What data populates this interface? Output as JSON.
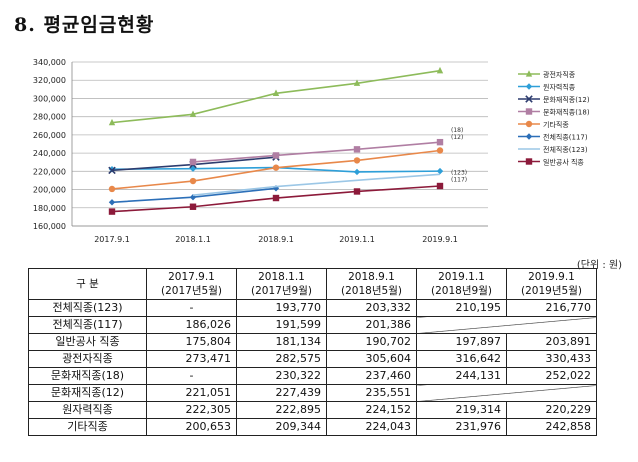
{
  "heading": "8. 평균임금현황",
  "unit_note": "(단위 : 원)",
  "chart_data": {
    "type": "line",
    "categories": [
      "2017.9.1",
      "2018.1.1",
      "2018.9.1",
      "2019.1.1",
      "2019.9.1"
    ],
    "ylim": [
      160000,
      340000
    ],
    "yticks": [
      "160,000",
      "180,000",
      "200,000",
      "220,000",
      "240,000",
      "260,000",
      "280,000",
      "300,000",
      "320,000",
      "340,000"
    ],
    "series": [
      {
        "name": "광전자직종",
        "color": "#8dbb5a",
        "marker": "triangle",
        "values": [
          273471,
          282575,
          305604,
          316642,
          330433
        ]
      },
      {
        "name": "원자력직종",
        "color": "#2e9fd8",
        "marker": "diamond",
        "values": [
          222305,
          222895,
          224152,
          219314,
          220229
        ]
      },
      {
        "name": "문화재직종(12)",
        "color": "#2d3c6e",
        "marker": "x",
        "values": [
          221051,
          227439,
          235551,
          null,
          null
        ]
      },
      {
        "name": "문화재직종(18)",
        "color": "#b07ea3",
        "marker": "square",
        "values": [
          null,
          230322,
          237460,
          244131,
          252022
        ]
      },
      {
        "name": "기타직종",
        "color": "#e8884a",
        "marker": "circle",
        "values": [
          200653,
          209344,
          224043,
          231976,
          242858
        ]
      },
      {
        "name": "전체직종(117)",
        "color": "#2c6fb8",
        "marker": "diamond",
        "values": [
          186026,
          191599,
          201386,
          null,
          null
        ]
      },
      {
        "name": "전체직종(123)",
        "color": "#9cc7e6",
        "marker": "none",
        "values": [
          null,
          193770,
          203332,
          210195,
          216770
        ]
      },
      {
        "name": "일반공사 직종",
        "color": "#8c1a3a",
        "marker": "square",
        "values": [
          175804,
          181134,
          190702,
          197897,
          203891
        ]
      }
    ],
    "end_labels": [
      "(18)",
      "(12)",
      "(123)",
      "(117)"
    ]
  },
  "table": {
    "header": {
      "col0": "구 분",
      "cols": [
        {
          "date": "2017.9.1",
          "sub": "(2017년5월)"
        },
        {
          "date": "2018.1.1",
          "sub": "(2017년9월)"
        },
        {
          "date": "2018.9.1",
          "sub": "(2018년5월)"
        },
        {
          "date": "2019.1.1",
          "sub": "(2018년9월)"
        },
        {
          "date": "2019.9.1",
          "sub": "(2019년5월)"
        }
      ]
    },
    "rows": [
      {
        "label": "전체직종(123)",
        "values": [
          "-",
          "193,770",
          "203,332",
          "210,195",
          "216,770"
        ]
      },
      {
        "label": "전체직종(117)",
        "values": [
          "186,026",
          "191,599",
          "201,386",
          "",
          ""
        ]
      },
      {
        "label": "일반공사 직종",
        "values": [
          "175,804",
          "181,134",
          "190,702",
          "197,897",
          "203,891"
        ]
      },
      {
        "label": "광전자직종",
        "values": [
          "273,471",
          "282,575",
          "305,604",
          "316,642",
          "330,433"
        ]
      },
      {
        "label": "문화재직종(18)",
        "values": [
          "-",
          "230,322",
          "237,460",
          "244,131",
          "252,022"
        ]
      },
      {
        "label": "문화재직종(12)",
        "values": [
          "221,051",
          "227,439",
          "235,551",
          "",
          ""
        ]
      },
      {
        "label": "원자력직종",
        "values": [
          "222,305",
          "222,895",
          "224,152",
          "219,314",
          "220,229"
        ]
      },
      {
        "label": "기타직종",
        "values": [
          "200,653",
          "209,344",
          "224,043",
          "231,976",
          "242,858"
        ]
      }
    ]
  }
}
